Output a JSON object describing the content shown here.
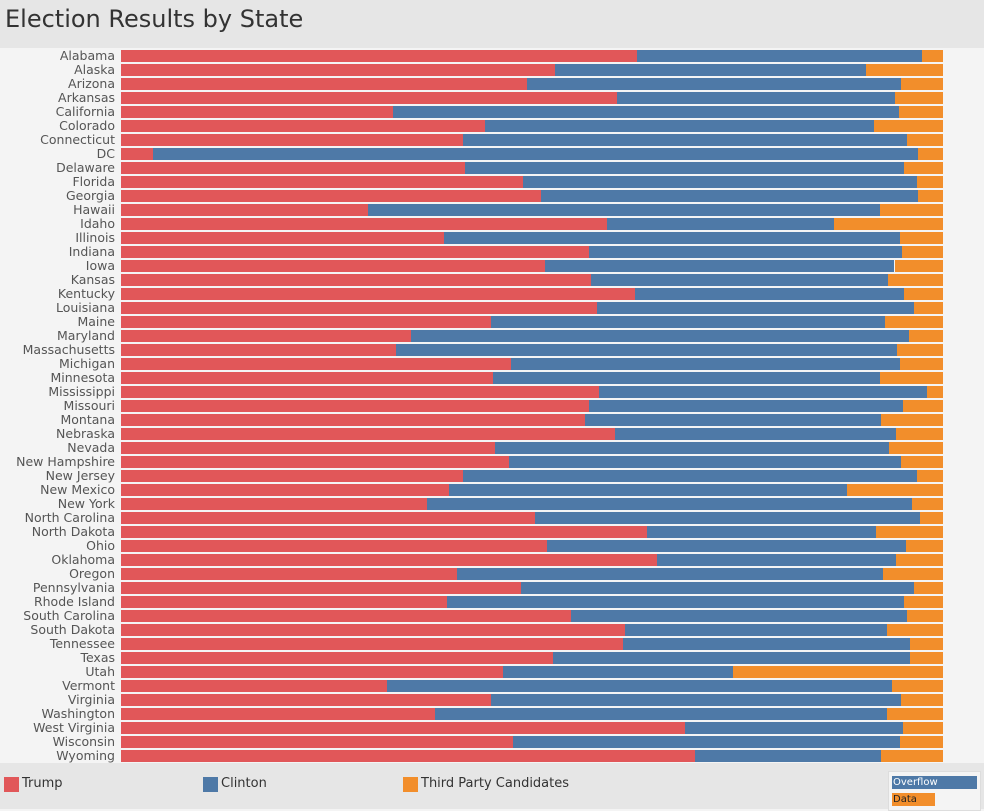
{
  "chart_data": {
    "type": "bar",
    "orientation": "horizontal",
    "stacked": true,
    "normalized": true,
    "title": "Election Results by State",
    "xlim": [
      0,
      100
    ],
    "grid": false,
    "legend_position": "bottom",
    "categories": [
      "Alabama",
      "Alaska",
      "Arizona",
      "Arkansas",
      "California",
      "Colorado",
      "Connecticut",
      "DC",
      "Delaware",
      "Florida",
      "Georgia",
      "Hawaii",
      "Idaho",
      "Illinois",
      "Indiana",
      "Iowa",
      "Kansas",
      "Kentucky",
      "Louisiana",
      "Maine",
      "Maryland",
      "Massachusetts",
      "Michigan",
      "Minnesota",
      "Mississippi",
      "Missouri",
      "Montana",
      "Nebraska",
      "Nevada",
      "New Hampshire",
      "New Jersey",
      "New Mexico",
      "New York",
      "North Carolina",
      "North Dakota",
      "Ohio",
      "Oklahoma",
      "Oregon",
      "Pennsylvania",
      "Rhode Island",
      "South Carolina",
      "South Dakota",
      "Tennessee",
      "Texas",
      "Utah",
      "Vermont",
      "Virginia",
      "Washington",
      "West Virginia",
      "Wisconsin",
      "Wyoming"
    ],
    "series": [
      {
        "name": "Trump",
        "color": "#e15759",
        "values": [
          62.8,
          52.8,
          49.4,
          60.3,
          33.1,
          44.3,
          41.6,
          3.9,
          41.8,
          48.9,
          51.1,
          30.0,
          59.1,
          39.3,
          56.9,
          51.6,
          57.2,
          62.5,
          57.9,
          45.0,
          35.3,
          33.5,
          47.4,
          45.3,
          58.2,
          56.9,
          56.4,
          60.1,
          45.5,
          47.2,
          41.6,
          39.9,
          37.2,
          50.4,
          64.0,
          51.8,
          65.2,
          40.9,
          48.7,
          39.7,
          54.7,
          61.3,
          61.1,
          52.6,
          46.5,
          32.4,
          45.0,
          38.2,
          68.6,
          47.7,
          69.8
        ]
      },
      {
        "name": "Clinton",
        "color": "#4e79a7",
        "values": [
          34.7,
          37.8,
          45.5,
          33.9,
          61.6,
          47.3,
          54.0,
          93.1,
          53.4,
          47.9,
          45.9,
          62.3,
          27.6,
          55.5,
          38.1,
          42.5,
          36.1,
          32.7,
          38.6,
          47.9,
          60.6,
          60.9,
          47.4,
          47.0,
          39.9,
          38.2,
          36.0,
          34.2,
          47.9,
          47.7,
          55.2,
          48.4,
          59.0,
          46.8,
          27.9,
          43.7,
          29.1,
          51.8,
          47.8,
          55.6,
          40.9,
          31.9,
          34.9,
          43.4,
          27.9,
          61.4,
          49.9,
          55.0,
          26.5,
          47.1,
          22.7
        ]
      },
      {
        "name": "Third Party Candidates",
        "color": "#f28e2b",
        "values": [
          2.5,
          9.4,
          5.1,
          5.8,
          5.3,
          8.4,
          4.4,
          3.0,
          4.8,
          3.2,
          3.0,
          7.7,
          13.3,
          5.2,
          5.0,
          5.9,
          6.7,
          4.8,
          3.5,
          7.1,
          4.1,
          5.6,
          5.2,
          7.7,
          1.9,
          4.9,
          7.6,
          5.7,
          6.6,
          5.1,
          3.2,
          11.7,
          3.8,
          2.8,
          8.1,
          4.5,
          5.7,
          7.3,
          3.5,
          4.7,
          4.4,
          6.8,
          4.0,
          4.0,
          25.6,
          6.2,
          5.1,
          6.8,
          4.9,
          5.2,
          7.5
        ]
      }
    ]
  },
  "overflow_box": {
    "overflow_label": "Overflow",
    "data_label": "Data"
  }
}
